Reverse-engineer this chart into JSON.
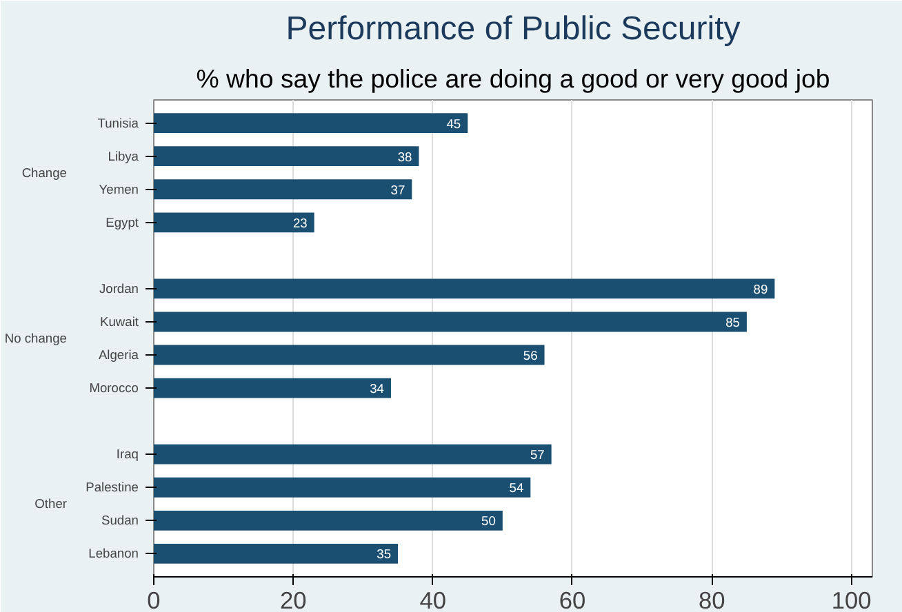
{
  "chart_data": {
    "type": "bar",
    "orientation": "horizontal",
    "title": "Performance of Public Security",
    "subtitle": "% who say the police are doing a good or very good job",
    "categories": [
      "Tunisia",
      "Libya",
      "Yemen",
      "Egypt",
      null,
      "Jordan",
      "Kuwait",
      "Algeria",
      "Morocco",
      null,
      "Iraq",
      "Palestine",
      "Sudan",
      "Lebanon"
    ],
    "values": [
      45,
      38,
      37,
      23,
      null,
      89,
      85,
      56,
      34,
      null,
      57,
      54,
      50,
      35
    ],
    "color": "#1b4f72",
    "data_labels": true,
    "annotations": [
      "Change",
      "No change",
      "Other"
    ],
    "xlim": [
      0,
      103
    ],
    "xticks": [
      0,
      20,
      40,
      60,
      80,
      100
    ],
    "grid": "x"
  }
}
